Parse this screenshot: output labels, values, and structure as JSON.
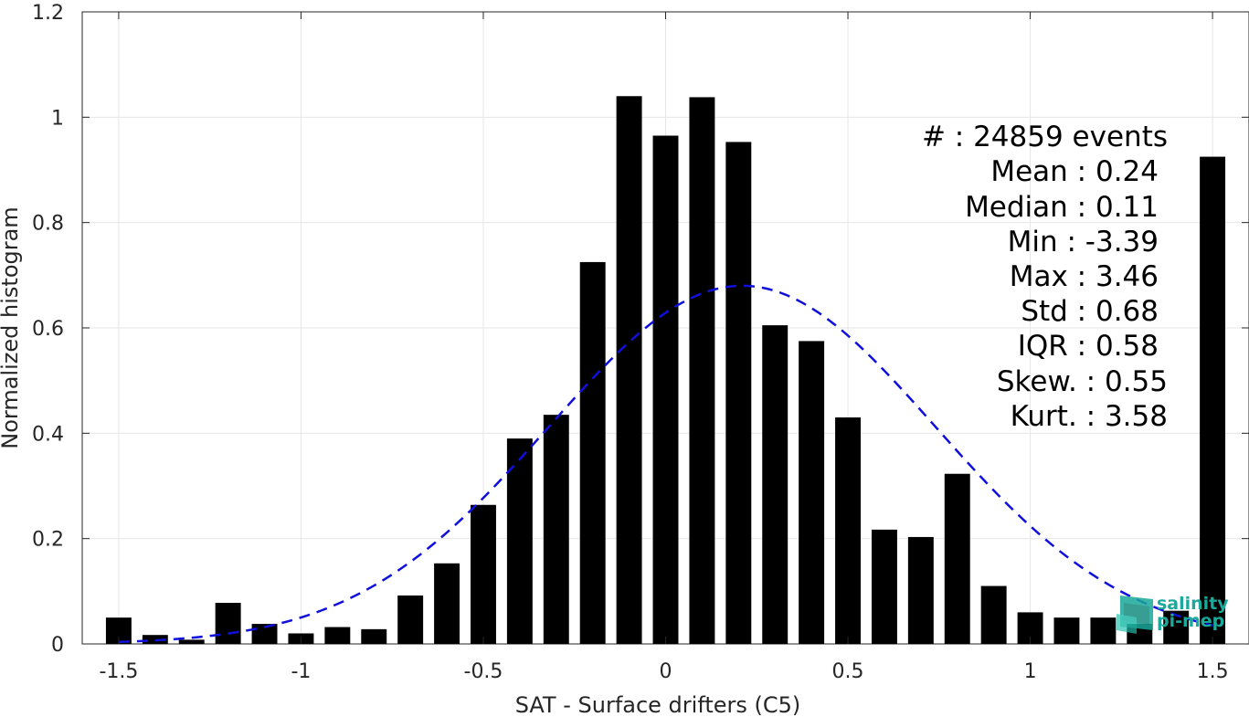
{
  "chart_data": {
    "type": "bar",
    "xlabel": "SAT - Surface drifters (C5)",
    "ylabel": "Normalized histogram",
    "xlim": [
      -1.6,
      1.6
    ],
    "ylim": [
      0,
      1.2
    ],
    "grid": true,
    "xticks": [
      -1.5,
      -1,
      -0.5,
      0,
      0.5,
      1,
      1.5
    ],
    "xtick_labels": [
      "-1.5",
      "-1",
      "-0.5",
      "0",
      "0.5",
      "1",
      "1.5"
    ],
    "yticks": [
      0,
      0.2,
      0.4,
      0.6,
      0.8,
      1,
      1.2
    ],
    "ytick_labels": [
      "0",
      "0.2",
      "0.4",
      "0.6",
      "0.8",
      "1",
      "1.2"
    ],
    "bar_width": 0.07,
    "bar_color": "#000000",
    "bars": {
      "x": [
        -1.5,
        -1.4,
        -1.3,
        -1.2,
        -1.1,
        -1.0,
        -0.9,
        -0.8,
        -0.7,
        -0.6,
        -0.5,
        -0.4,
        -0.3,
        -0.2,
        -0.1,
        0.0,
        0.1,
        0.2,
        0.3,
        0.4,
        0.5,
        0.6,
        0.7,
        0.8,
        0.9,
        1.0,
        1.1,
        1.2,
        1.3,
        1.4,
        1.5
      ],
      "values": [
        0.05,
        0.017,
        0.008,
        0.078,
        0.038,
        0.02,
        0.032,
        0.028,
        0.092,
        0.153,
        0.264,
        0.39,
        0.435,
        0.725,
        1.04,
        0.965,
        1.038,
        0.953,
        0.605,
        0.575,
        0.43,
        0.217,
        0.203,
        0.323,
        0.11,
        0.06,
        0.05,
        0.05,
        0.038,
        0.063,
        0.925
      ]
    },
    "fit_curve": {
      "style": "dashed",
      "color": "#1010dd",
      "mean": 0.21,
      "std": 0.53,
      "peak": 0.68,
      "x_range": [
        -1.5,
        1.5
      ]
    },
    "annotations": [
      "#  : 24859 events",
      "Mean : 0.24",
      "Median : 0.11",
      "Min : -3.39",
      "Max : 3.46",
      "Std : 0.68",
      "IQR : 0.58",
      "Skew. : 0.55",
      "Kurt. : 3.58"
    ]
  },
  "logo": {
    "line1": "salinity",
    "line2": "pi-mep",
    "icon": "salinity-pimep-logo-icon",
    "color": "#1aa99a"
  }
}
